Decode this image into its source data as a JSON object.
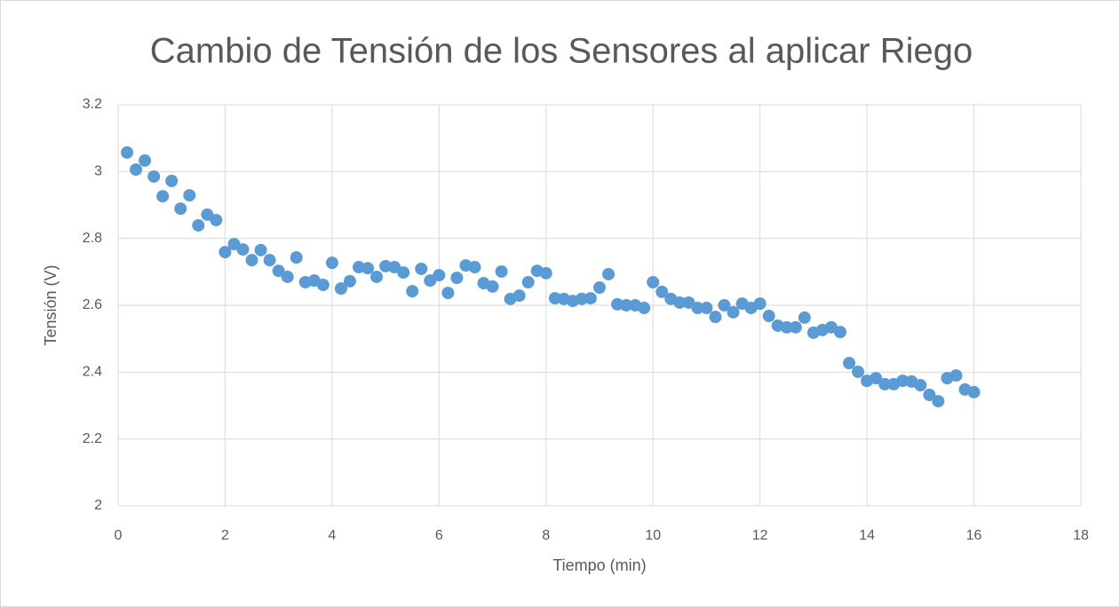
{
  "chart_data": {
    "type": "scatter",
    "title": "Cambio de Tensión de los Sensores al aplicar Riego",
    "x_label": "Tiempo (min)",
    "y_label": "Tensión (V)",
    "color": "#5b9bd5",
    "grid": true,
    "xlim": [
      0,
      18
    ],
    "xticks": [
      0,
      2,
      4,
      6,
      8,
      10,
      12,
      14,
      16,
      18
    ],
    "ylim": [
      2,
      3.2
    ],
    "yticks": [
      2,
      2.2,
      2.4,
      2.6,
      2.8,
      3,
      3.2
    ],
    "x": [
      0.167,
      0.333,
      0.5,
      0.667,
      0.833,
      1,
      1.167,
      1.333,
      1.5,
      1.667,
      1.833,
      2,
      2.167,
      2.333,
      2.5,
      2.667,
      2.833,
      3,
      3.167,
      3.333,
      3.5,
      3.667,
      3.833,
      4,
      4.167,
      4.333,
      4.5,
      4.667,
      4.833,
      5,
      5.167,
      5.333,
      5.5,
      5.667,
      5.833,
      6,
      6.167,
      6.333,
      6.5,
      6.667,
      6.833,
      7,
      7.167,
      7.333,
      7.5,
      7.667,
      7.833,
      8,
      8.167,
      8.333,
      8.5,
      8.667,
      8.833,
      9,
      9.167,
      9.333,
      9.5,
      9.667,
      9.833,
      10,
      10.167,
      10.333,
      10.5,
      10.667,
      10.833,
      11,
      11.167,
      11.333,
      11.5,
      11.667,
      11.833,
      12,
      12.167,
      12.333,
      12.5,
      12.667,
      12.833,
      13,
      13.167,
      13.333,
      13.5,
      13.667,
      13.833,
      14,
      14.167,
      14.333,
      14.5,
      14.667,
      14.833,
      15,
      15.167,
      15.333,
      15.5,
      15.667,
      15.833,
      16
    ],
    "values": [
      3.057,
      3.006,
      3.033,
      2.985,
      2.926,
      2.972,
      2.889,
      2.929,
      2.839,
      2.871,
      2.855,
      2.759,
      2.783,
      2.767,
      2.735,
      2.765,
      2.735,
      2.703,
      2.685,
      2.743,
      2.669,
      2.674,
      2.661,
      2.727,
      2.65,
      2.672,
      2.714,
      2.711,
      2.685,
      2.717,
      2.714,
      2.698,
      2.642,
      2.709,
      2.674,
      2.69,
      2.637,
      2.682,
      2.719,
      2.714,
      2.666,
      2.656,
      2.701,
      2.619,
      2.629,
      2.669,
      2.703,
      2.696,
      2.621,
      2.619,
      2.613,
      2.619,
      2.621,
      2.653,
      2.693,
      2.603,
      2.6,
      2.6,
      2.592,
      2.669,
      2.64,
      2.619,
      2.608,
      2.608,
      2.592,
      2.592,
      2.565,
      2.6,
      2.579,
      2.605,
      2.592,
      2.605,
      2.568,
      2.539,
      2.534,
      2.534,
      2.563,
      2.518,
      2.526,
      2.534,
      2.52,
      2.427,
      2.401,
      2.374,
      2.382,
      2.364,
      2.364,
      2.374,
      2.372,
      2.361,
      2.332,
      2.313,
      2.382,
      2.39,
      2.348,
      2.34
    ]
  }
}
